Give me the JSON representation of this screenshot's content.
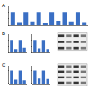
{
  "chart_data": [
    {
      "type": "bar",
      "title": "A",
      "categories": [
        null,
        null,
        null,
        null,
        null,
        null,
        null,
        null,
        null,
        null,
        null,
        null
      ],
      "values": [
        1.0,
        0.25,
        1.0,
        0.3,
        1.0,
        0.2,
        1.0,
        0.35,
        1.0,
        0.3,
        1.0,
        0.25
      ],
      "color": "#3a6fc4",
      "ylim": [
        0,
        1.4
      ],
      "yticks": [
        0,
        0.5,
        1
      ],
      "grid": false,
      "tick_labels": false
    },
    {
      "type": "bar",
      "title": "B",
      "categories": [
        null,
        null,
        null,
        null
      ],
      "values": [
        1.0,
        0.3,
        1.0,
        0.4
      ],
      "color": "#3a6fc4",
      "ylim": [
        0,
        1.4
      ],
      "yticks": [
        0,
        0.5,
        1
      ],
      "grid": false,
      "tick_labels": false
    },
    {
      "type": "bar",
      "categories": [
        null,
        null,
        null,
        null
      ],
      "values": [
        1.0,
        0.35,
        1.0,
        0.3
      ],
      "color": "#3a6fc4",
      "ylim": [
        0,
        1.4
      ],
      "yticks": [
        0,
        0.5,
        1
      ],
      "grid": false,
      "tick_labels": false
    },
    {
      "type": "bar",
      "title": "C",
      "categories": [
        null,
        null,
        null,
        null
      ],
      "values": [
        1.0,
        0.3,
        1.0,
        0.25
      ],
      "color": "#3a6fc4",
      "ylim": [
        0,
        1.4
      ],
      "yticks": [
        0,
        0.5,
        1
      ],
      "grid": false,
      "tick_labels": false
    },
    {
      "type": "bar",
      "categories": [
        null,
        null,
        null,
        null
      ],
      "values": [
        1.0,
        0.4,
        1.0,
        0.35
      ],
      "color": "#3a6fc4",
      "ylim": [
        0,
        1.4
      ],
      "yticks": [
        0,
        0.5,
        1
      ],
      "grid": false,
      "tick_labels": false
    }
  ]
}
